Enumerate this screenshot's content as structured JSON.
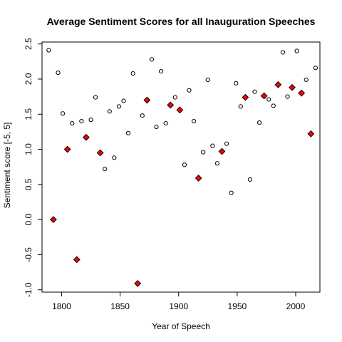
{
  "chart_data": {
    "type": "scatter",
    "title": "Average Sentiment Scores for all Inauguration Speeches",
    "xlabel": "Year of Speech",
    "ylabel": "Sentiment score [-5, 5]",
    "xlim": [
      1783.3,
      2020.7
    ],
    "ylim": [
      -1.033,
      2.527
    ],
    "xticks": [
      1800,
      1850,
      1900,
      1950,
      2000
    ],
    "xtick_labels": [
      "1800",
      "1850",
      "1900",
      "1950",
      "2000"
    ],
    "yticks": [
      -1.0,
      -0.5,
      0.0,
      0.5,
      1.0,
      1.5,
      2.0,
      2.5
    ],
    "ytick_labels": [
      "-1.0",
      "-0.5",
      "0.0",
      "0.5",
      "1.0",
      "1.5",
      "2.0",
      "2.5"
    ],
    "grid": false,
    "legend": "none",
    "series": [
      {
        "marker": "open-circle",
        "color": "#000000",
        "x": [
          1789,
          1797,
          1801,
          1809,
          1817,
          1825,
          1829,
          1837,
          1841,
          1845,
          1849,
          1853,
          1857,
          1861,
          1869,
          1877,
          1881,
          1885,
          1889,
          1897,
          1905,
          1909,
          1913,
          1921,
          1925,
          1929,
          1933,
          1941,
          1945,
          1949,
          1953,
          1961,
          1965,
          1969,
          1977,
          1981,
          1989,
          1993,
          2001,
          2009,
          2017
        ],
        "y": [
          2.41,
          2.09,
          1.51,
          1.37,
          1.4,
          1.42,
          1.74,
          0.72,
          1.54,
          0.88,
          1.61,
          1.69,
          1.23,
          2.08,
          1.48,
          2.28,
          1.32,
          2.11,
          1.37,
          1.74,
          0.78,
          1.84,
          1.4,
          0.96,
          1.99,
          1.05,
          0.8,
          1.08,
          0.38,
          1.94,
          1.61,
          0.57,
          1.82,
          1.38,
          1.71,
          1.62,
          2.38,
          1.75,
          2.4,
          1.99,
          2.16
        ]
      },
      {
        "marker": "red-diamond",
        "color": "#ff0000",
        "x": [
          1793,
          1805,
          1813,
          1821,
          1833,
          1865,
          1873,
          1893,
          1901,
          1917,
          1937,
          1957,
          1973,
          1985,
          1997,
          2005,
          2013
        ],
        "y": [
          0.0,
          1.0,
          -0.57,
          1.17,
          0.95,
          -0.91,
          1.7,
          1.63,
          1.56,
          0.59,
          0.97,
          1.74,
          1.76,
          1.92,
          1.88,
          1.8,
          1.22
        ]
      }
    ]
  }
}
